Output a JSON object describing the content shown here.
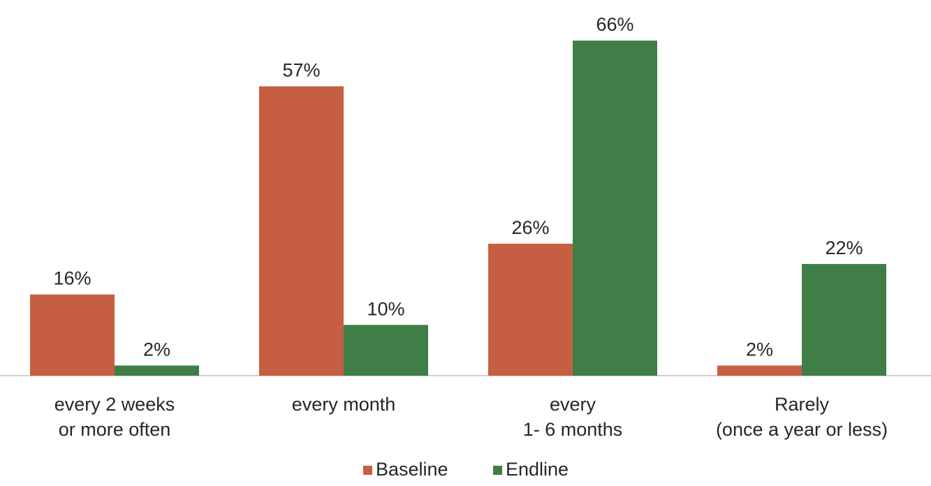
{
  "chart_data": {
    "type": "bar",
    "title": "",
    "xlabel": "",
    "ylabel": "",
    "categories": [
      [
        "every 2 weeks",
        "or more often"
      ],
      [
        "every month"
      ],
      [
        "every",
        "1- 6 months"
      ],
      [
        "Rarely",
        "(once a year or less)"
      ]
    ],
    "series": [
      {
        "name": "Baseline",
        "color": "#C65F42",
        "values": [
          16,
          57,
          26,
          2
        ],
        "labels": [
          "16%",
          "57%",
          "26%",
          "2%"
        ]
      },
      {
        "name": "Endline",
        "color": "#3F7F47",
        "values": [
          2,
          10,
          66,
          22
        ],
        "labels": [
          "2%",
          "10%",
          "66%",
          "22%"
        ]
      }
    ],
    "value_unit": "%",
    "ylim": [
      0,
      70
    ],
    "grid": false,
    "legend_position": "bottom",
    "axis_color": "#BFBFBF"
  }
}
